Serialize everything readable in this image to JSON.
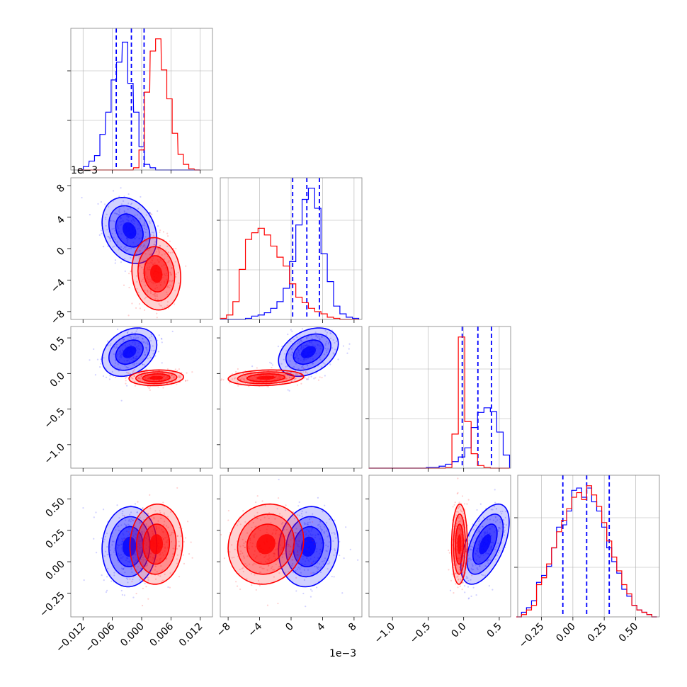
{
  "figure": {
    "type": "corner-plot"
  },
  "colors": {
    "series_a": "#0000ff",
    "series_b": "#ff0000",
    "grid": "#b0b0b0",
    "axes": "#808080"
  },
  "chart_data": [
    {
      "type": "bar",
      "panel": "histogram-p1",
      "x": [
        -0.0125,
        -0.0114,
        -0.0102,
        -0.0091,
        -0.008,
        -0.0068,
        -0.0057,
        -0.0046,
        -0.0034,
        -0.0023,
        -0.0011,
        0.0,
        0.0011,
        0.0023,
        0.0034,
        0.0046,
        0.0057,
        0.0068,
        0.008,
        0.0091,
        0.0102,
        0.0114
      ],
      "series": [
        {
          "values": [
            0,
            3,
            8,
            13,
            32,
            52,
            81,
            97,
            115,
            78,
            52,
            21,
            5,
            2,
            0,
            0,
            0,
            0,
            0,
            0,
            0,
            0
          ],
          "quantiles": [
            -0.0052,
            -0.0021,
            0.0005
          ]
        },
        {
          "values": [
            0,
            0,
            0,
            0,
            0,
            0,
            0,
            0,
            0,
            0,
            2,
            18,
            70,
            107,
            118,
            90,
            64,
            33,
            14,
            5,
            1,
            0
          ]
        }
      ],
      "xlim": [
        -0.0145,
        0.0145
      ],
      "xticks": [
        "−0.012",
        "−0.006",
        "0.000",
        "0.006",
        "0.012"
      ]
    },
    {
      "type": "bar",
      "panel": "histogram-p2",
      "x": [
        -8.6,
        -7.8,
        -7.0,
        -6.2,
        -5.4,
        -4.6,
        -3.8,
        -3.0,
        -2.2,
        -1.4,
        -0.6,
        0.2,
        1.0,
        1.8,
        2.6,
        3.4,
        4.2,
        5.0,
        5.8,
        6.6,
        7.4,
        8.2
      ],
      "series": [
        {
          "values": [
            0,
            0,
            0,
            0,
            1,
            3,
            4,
            6,
            10,
            16,
            28,
            52,
            85,
            108,
            118,
            100,
            59,
            34,
            12,
            5,
            2,
            1
          ],
          "quantiles": [
            0.2,
            2.0,
            3.6
          ]
        },
        {
          "values": [
            1,
            4,
            16,
            45,
            72,
            78,
            82,
            76,
            66,
            56,
            48,
            32,
            20,
            15,
            10,
            7,
            5,
            2,
            1,
            0,
            0,
            0
          ]
        }
      ],
      "xlim": [
        -9.0,
        9.0
      ],
      "xticks": [
        "−8",
        "−4",
        "0",
        "4",
        "8"
      ],
      "offset": "1e−3"
    },
    {
      "type": "bar",
      "panel": "histogram-p3",
      "x": [
        -1.29,
        -1.2,
        -1.11,
        -1.02,
        -0.93,
        -0.84,
        -0.75,
        -0.66,
        -0.57,
        -0.48,
        -0.39,
        -0.3,
        -0.21,
        -0.12,
        -0.03,
        0.06,
        0.15,
        0.24,
        0.33,
        0.42,
        0.51,
        0.6
      ],
      "series": [
        {
          "values": [
            0,
            0,
            0,
            0,
            0,
            0,
            0,
            0,
            0,
            1,
            1,
            3,
            6,
            10,
            17,
            31,
            62,
            85,
            92,
            86,
            55,
            20
          ],
          "quantiles": [
            -0.02,
            0.2,
            0.39
          ]
        },
        {
          "values": [
            0,
            0,
            0,
            0,
            0,
            0,
            0,
            0,
            0,
            0,
            0,
            0,
            1,
            52,
            200,
            71,
            22,
            4,
            1,
            0,
            0,
            0
          ]
        }
      ],
      "xlim": [
        -1.33,
        0.66
      ],
      "xticks": [
        "−1.0",
        "−0.5",
        "0.0",
        "0.5"
      ]
    },
    {
      "type": "bar",
      "panel": "histogram-p4",
      "x": [
        -0.43,
        -0.39,
        -0.35,
        -0.31,
        -0.27,
        -0.23,
        -0.19,
        -0.15,
        -0.11,
        -0.07,
        -0.03,
        0.01,
        0.05,
        0.09,
        0.13,
        0.17,
        0.21,
        0.25,
        0.29,
        0.33,
        0.37,
        0.41,
        0.45,
        0.49,
        0.53,
        0.57,
        0.61,
        0.65
      ],
      "series": [
        {
          "values": [
            0,
            4,
            8,
            14,
            30,
            36,
            44,
            60,
            78,
            80,
            92,
            110,
            112,
            104,
            112,
            100,
            92,
            78,
            60,
            48,
            38,
            24,
            18,
            10,
            6,
            4,
            2,
            0
          ],
          "quantiles": [
            -0.08,
            0.11,
            0.29
          ]
        },
        {
          "values": [
            0,
            2,
            6,
            10,
            28,
            34,
            46,
            60,
            74,
            84,
            94,
            104,
            108,
            102,
            114,
            106,
            96,
            82,
            66,
            52,
            40,
            28,
            20,
            10,
            6,
            4,
            2,
            0
          ]
        }
      ],
      "xlim": [
        -0.44,
        0.69
      ],
      "xticks": [
        "−0.25",
        "0.00",
        "0.25",
        "0.50"
      ]
    },
    {
      "type": "scatter",
      "panel": "scatter-p1-p2",
      "series": [
        {
          "center": [
            -0.0025,
            2.3
          ],
          "sd": [
            0.0028,
            2.1
          ],
          "rho": -0.25
        },
        {
          "center": [
            0.003,
            -3.2
          ],
          "sd": [
            0.0025,
            2.3
          ],
          "rho": -0.1
        }
      ],
      "xlim": [
        -0.0145,
        0.0145
      ],
      "ylim": [
        -9.0,
        9.0
      ],
      "yticks": [
        "−8",
        "−4",
        "0",
        "4",
        "8"
      ],
      "offset": "1e−3"
    },
    {
      "type": "scatter",
      "panel": "scatter-p1-p3",
      "series": [
        {
          "center": [
            -0.0025,
            0.3
          ],
          "sd": [
            0.0028,
            0.17
          ],
          "rho": 0.3
        },
        {
          "center": [
            0.003,
            -0.06
          ],
          "sd": [
            0.0028,
            0.055
          ],
          "rho": 0.1
        }
      ],
      "xlim": [
        -0.0145,
        0.0145
      ],
      "ylim": [
        -1.33,
        0.66
      ],
      "yticks": [
        "−1.0",
        "−0.5",
        "0.0",
        "0.5"
      ]
    },
    {
      "type": "scatter",
      "panel": "scatter-p2-p3",
      "series": [
        {
          "center": [
            2.2,
            0.3
          ],
          "sd": [
            1.9,
            0.17
          ],
          "rho": 0.35
        },
        {
          "center": [
            -3.2,
            -0.06
          ],
          "sd": [
            2.4,
            0.055
          ],
          "rho": 0.15
        }
      ],
      "xlim": [
        -9.0,
        9.0
      ],
      "ylim": [
        -1.33,
        0.66
      ]
    },
    {
      "type": "scatter",
      "panel": "scatter-p1-p4",
      "series": [
        {
          "center": [
            -0.0025,
            0.12
          ],
          "sd": [
            0.0028,
            0.16
          ],
          "rho": 0.05
        },
        {
          "center": [
            0.003,
            0.14
          ],
          "sd": [
            0.0027,
            0.16
          ],
          "rho": 0.05
        }
      ],
      "xlim": [
        -0.0145,
        0.0145
      ],
      "ylim": [
        -0.44,
        0.69
      ],
      "yticks": [
        "−0.25",
        "0.00",
        "0.25",
        "0.50"
      ]
    },
    {
      "type": "scatter",
      "panel": "scatter-p2-p4",
      "series": [
        {
          "center": [
            2.2,
            0.12
          ],
          "sd": [
            1.9,
            0.16
          ],
          "rho": 0.1
        },
        {
          "center": [
            -3.2,
            0.14
          ],
          "sd": [
            2.4,
            0.16
          ],
          "rho": 0.1
        }
      ],
      "xlim": [
        -9.0,
        9.0
      ],
      "ylim": [
        -0.44,
        0.69
      ]
    },
    {
      "type": "scatter",
      "panel": "scatter-p3-p4",
      "series": [
        {
          "center": [
            0.3,
            0.14
          ],
          "sd": [
            0.17,
            0.16
          ],
          "rho": 0.55
        },
        {
          "center": [
            -0.06,
            0.14
          ],
          "sd": [
            0.055,
            0.16
          ],
          "rho": 0.05
        }
      ],
      "xlim": [
        -1.33,
        0.66
      ],
      "ylim": [
        -0.44,
        0.69
      ]
    }
  ]
}
